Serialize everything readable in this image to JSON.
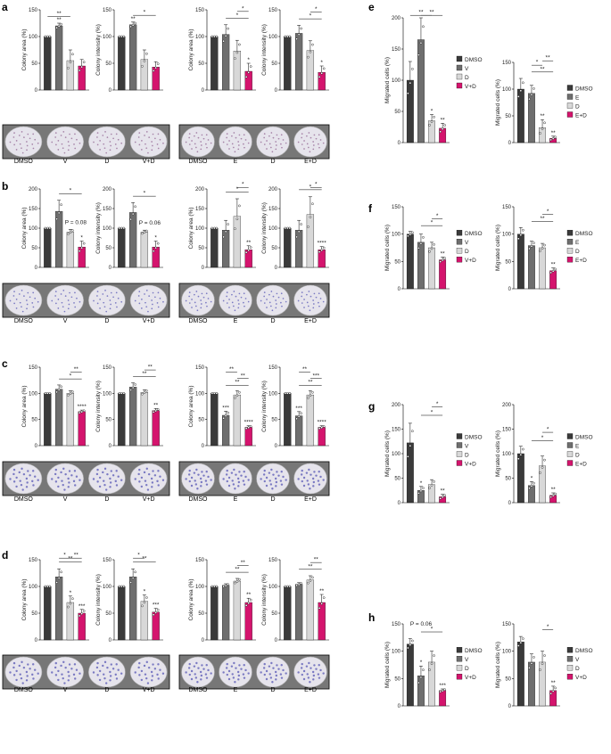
{
  "colors": {
    "DMSO": "#3a3a3a",
    "V": "#6e6e6e",
    "E": "#6e6e6e",
    "D": "#d8d8d8",
    "VD": "#d4146d",
    "ED": "#d4146d"
  },
  "chart_data": [
    {
      "panel": "a",
      "type": "bar",
      "ylabel": "Colony area (%)",
      "ylim": [
        0,
        150
      ],
      "ticks": [
        0,
        50,
        100,
        150
      ],
      "categories": [
        "DMSO",
        "V",
        "D",
        "V+D"
      ],
      "values": [
        100,
        120,
        55,
        45
      ],
      "errors": [
        0,
        5,
        20,
        12
      ],
      "sig": [
        "",
        "**",
        "",
        ""
      ],
      "brackets": [
        [
          "**",
          0,
          2
        ]
      ]
    },
    {
      "panel": "a",
      "type": "bar",
      "ylabel": "Colony intensity (%)",
      "ylim": [
        0,
        150
      ],
      "ticks": [
        0,
        50,
        100,
        150
      ],
      "categories": [
        "DMSO",
        "V",
        "D",
        "V+D"
      ],
      "values": [
        100,
        122,
        57,
        43
      ],
      "errors": [
        0,
        5,
        18,
        10
      ],
      "sig": [
        "",
        "**",
        "",
        ""
      ],
      "brackets": [
        [
          "*",
          1,
          3
        ]
      ]
    },
    {
      "panel": "a",
      "type": "bar",
      "ylabel": "Colony area (%)",
      "ylim": [
        0,
        150
      ],
      "ticks": [
        0,
        50,
        100,
        150
      ],
      "categories": [
        "DMSO",
        "E",
        "D",
        "E+D"
      ],
      "values": [
        100,
        104,
        73,
        35
      ],
      "errors": [
        0,
        18,
        20,
        15
      ],
      "sig": [
        "",
        "",
        "",
        "*"
      ],
      "brackets": [
        [
          "*",
          1,
          3
        ],
        [
          "*",
          2,
          3
        ]
      ]
    },
    {
      "panel": "a",
      "type": "bar",
      "ylabel": "Colony intensity (%)",
      "ylim": [
        0,
        150
      ],
      "ticks": [
        0,
        50,
        100,
        150
      ],
      "categories": [
        "DMSO",
        "E",
        "D",
        "E+D"
      ],
      "values": [
        100,
        106,
        74,
        33
      ],
      "errors": [
        0,
        15,
        18,
        12
      ],
      "sig": [
        "",
        "",
        "",
        "*"
      ],
      "brackets": [
        [
          "*",
          1,
          3
        ],
        [
          "*",
          2,
          3
        ]
      ]
    },
    {
      "panel": "b",
      "type": "bar",
      "ylabel": "Colony area (%)",
      "ylim": [
        0,
        200
      ],
      "ticks": [
        0,
        50,
        100,
        150,
        200
      ],
      "categories": [
        "DMSO",
        "V",
        "D",
        "V+D"
      ],
      "values": [
        100,
        143,
        90,
        52
      ],
      "errors": [
        0,
        28,
        7,
        15
      ],
      "sig": [
        "",
        "",
        "",
        "*"
      ],
      "brackets": [
        [
          "*",
          1,
          3
        ]
      ],
      "pnote": "P = 0.08"
    },
    {
      "panel": "b",
      "type": "bar",
      "ylabel": "Colony intensity (%)",
      "ylim": [
        0,
        200
      ],
      "ticks": [
        0,
        50,
        100,
        150,
        200
      ],
      "categories": [
        "DMSO",
        "V",
        "D",
        "V+D"
      ],
      "values": [
        100,
        140,
        90,
        52
      ],
      "errors": [
        0,
        25,
        5,
        15
      ],
      "sig": [
        "",
        "",
        "",
        "*"
      ],
      "brackets": [
        [
          "*",
          1,
          3
        ]
      ],
      "pnote": "P = 0.06"
    },
    {
      "panel": "b",
      "type": "bar",
      "ylabel": "Colony area (%)",
      "ylim": [
        0,
        200
      ],
      "ticks": [
        0,
        50,
        100,
        150,
        200
      ],
      "categories": [
        "DMSO",
        "E",
        "D",
        "E+D"
      ],
      "values": [
        100,
        95,
        130,
        45
      ],
      "errors": [
        0,
        25,
        45,
        10
      ],
      "sig": [
        "",
        "",
        "",
        "**"
      ],
      "brackets": [
        [
          "*",
          1,
          3
        ],
        [
          "*",
          2,
          3
        ]
      ]
    },
    {
      "panel": "b",
      "type": "bar",
      "ylabel": "Colony intensity (%)",
      "ylim": [
        0,
        200
      ],
      "ticks": [
        0,
        50,
        100,
        150,
        200
      ],
      "categories": [
        "DMSO",
        "E",
        "D",
        "E+D"
      ],
      "values": [
        100,
        95,
        135,
        45
      ],
      "errors": [
        0,
        25,
        45,
        8
      ],
      "sig": [
        "",
        "",
        "",
        "****"
      ],
      "brackets": [
        [
          "*",
          1,
          3
        ],
        [
          "*",
          2,
          3
        ]
      ]
    },
    {
      "panel": "c",
      "type": "bar",
      "ylabel": "Colony area (%)",
      "ylim": [
        0,
        150
      ],
      "ticks": [
        0,
        50,
        100,
        150
      ],
      "categories": [
        "DMSO",
        "V",
        "D",
        "V+D"
      ],
      "values": [
        100,
        108,
        100,
        65
      ],
      "errors": [
        0,
        8,
        5,
        3
      ],
      "sig": [
        "",
        "",
        "",
        "****"
      ],
      "brackets": [
        [
          "*",
          1,
          3
        ],
        [
          "**",
          2,
          3
        ]
      ]
    },
    {
      "panel": "c",
      "type": "bar",
      "ylabel": "Colony intensity (%)",
      "ylim": [
        0,
        150
      ],
      "ticks": [
        0,
        50,
        100,
        150
      ],
      "categories": [
        "DMSO",
        "V",
        "D",
        "V+D"
      ],
      "values": [
        100,
        112,
        102,
        67
      ],
      "errors": [
        0,
        8,
        5,
        4
      ],
      "sig": [
        "",
        "",
        "",
        "**"
      ],
      "brackets": [
        [
          "**",
          1,
          3
        ],
        [
          "**",
          2,
          3
        ]
      ]
    },
    {
      "panel": "c",
      "type": "bar",
      "ylabel": "Colony area (%)",
      "ylim": [
        0,
        150
      ],
      "ticks": [
        0,
        50,
        100,
        150
      ],
      "categories": [
        "DMSO",
        "E",
        "D",
        "E+D"
      ],
      "values": [
        100,
        58,
        97,
        35
      ],
      "errors": [
        0,
        8,
        8,
        3
      ],
      "sig": [
        "",
        "***",
        "",
        "****"
      ],
      "brackets": [
        [
          "**",
          1,
          3
        ],
        [
          "**",
          2,
          3
        ],
        [
          "**",
          1,
          2
        ]
      ]
    },
    {
      "panel": "c",
      "type": "bar",
      "ylabel": "Colony intensity (%)",
      "ylim": [
        0,
        150
      ],
      "ticks": [
        0,
        50,
        100,
        150
      ],
      "categories": [
        "DMSO",
        "E",
        "D",
        "E+D"
      ],
      "values": [
        100,
        57,
        97,
        35
      ],
      "errors": [
        0,
        8,
        8,
        3
      ],
      "sig": [
        "",
        "***",
        "",
        "****"
      ],
      "brackets": [
        [
          "**",
          1,
          3
        ],
        [
          "***",
          2,
          3
        ],
        [
          "**",
          1,
          2
        ]
      ]
    },
    {
      "panel": "d",
      "type": "bar",
      "ylabel": "Colony area (%)",
      "ylim": [
        0,
        150
      ],
      "ticks": [
        0,
        50,
        100,
        150
      ],
      "categories": [
        "DMSO",
        "V",
        "D",
        "V+D"
      ],
      "values": [
        100,
        118,
        70,
        50
      ],
      "errors": [
        0,
        15,
        12,
        7
      ],
      "sig": [
        "",
        "",
        "*",
        "***"
      ],
      "brackets": [
        [
          "**",
          1,
          3
        ],
        [
          "*",
          1,
          2
        ],
        [
          "**",
          2,
          3
        ]
      ]
    },
    {
      "panel": "d",
      "type": "bar",
      "ylabel": "Colony intensity (%)",
      "ylim": [
        0,
        150
      ],
      "ticks": [
        0,
        50,
        100,
        150
      ],
      "categories": [
        "DMSO",
        "V",
        "D",
        "V+D"
      ],
      "values": [
        100,
        118,
        72,
        52
      ],
      "errors": [
        0,
        15,
        12,
        7
      ],
      "sig": [
        "",
        "",
        "*",
        "***"
      ],
      "brackets": [
        [
          "**",
          1,
          3
        ],
        [
          "*",
          1,
          2
        ]
      ]
    },
    {
      "panel": "d",
      "type": "bar",
      "ylabel": "Colony area (%)",
      "ylim": [
        0,
        150
      ],
      "ticks": [
        0,
        50,
        100,
        150
      ],
      "categories": [
        "DMSO",
        "E",
        "D",
        "E+D"
      ],
      "values": [
        100,
        102,
        110,
        70
      ],
      "errors": [
        0,
        3,
        5,
        8
      ],
      "sig": [
        "",
        "",
        "",
        "**"
      ],
      "brackets": [
        [
          "**",
          1,
          3
        ],
        [
          "**",
          2,
          3
        ]
      ]
    },
    {
      "panel": "d",
      "type": "bar",
      "ylabel": "Colony intensity (%)",
      "ylim": [
        0,
        150
      ],
      "ticks": [
        0,
        50,
        100,
        150
      ],
      "categories": [
        "DMSO",
        "E",
        "D",
        "E+D"
      ],
      "values": [
        100,
        104,
        112,
        70
      ],
      "errors": [
        0,
        3,
        8,
        15
      ],
      "sig": [
        "",
        "",
        "",
        "**"
      ],
      "brackets": [
        [
          "**",
          1,
          3
        ],
        [
          "**",
          2,
          3
        ]
      ]
    },
    {
      "panel": "e",
      "type": "bar",
      "ylabel": "Migrated cells (%)",
      "ylim": [
        0,
        200
      ],
      "ticks": [
        0,
        50,
        100,
        150,
        200
      ],
      "categories": [
        "DMSO",
        "V",
        "D",
        "V+D"
      ],
      "values": [
        100,
        165,
        35,
        23
      ],
      "errors": [
        30,
        35,
        10,
        8
      ],
      "sig": [
        "",
        "",
        "*",
        "**"
      ],
      "brackets": [
        [
          "**",
          0,
          2
        ],
        [
          "**",
          1,
          3
        ]
      ],
      "legend": [
        "DMSO",
        "V",
        "D",
        "V+D"
      ]
    },
    {
      "panel": "e",
      "type": "bar",
      "ylabel": "Migrated cells (%)",
      "ylim": [
        0,
        150
      ],
      "ticks": [
        0,
        50,
        100,
        150
      ],
      "categories": [
        "DMSO",
        "E",
        "D",
        "E+D"
      ],
      "values": [
        100,
        92,
        28,
        8
      ],
      "errors": [
        20,
        15,
        15,
        4
      ],
      "sig": [
        "",
        "",
        "**",
        "**"
      ],
      "brackets": [
        [
          "**",
          1,
          3
        ],
        [
          "*",
          1,
          2
        ],
        [
          "**",
          2,
          3
        ]
      ],
      "legend": [
        "DMSO",
        "E",
        "D",
        "E+D"
      ]
    },
    {
      "panel": "f",
      "type": "bar",
      "ylabel": "Migrated cells (%)",
      "ylim": [
        0,
        150
      ],
      "ticks": [
        0,
        50,
        100,
        150
      ],
      "categories": [
        "DMSO",
        "V",
        "D",
        "V+D"
      ],
      "values": [
        100,
        85,
        75,
        53
      ],
      "errors": [
        5,
        15,
        10,
        5
      ],
      "sig": [
        "",
        "",
        "",
        "**"
      ],
      "brackets": [
        [
          "*",
          1,
          3
        ],
        [
          "*",
          2,
          3
        ]
      ],
      "legend": [
        "DMSO",
        "V",
        "D",
        "V+D"
      ]
    },
    {
      "panel": "f",
      "type": "bar",
      "ylabel": "Migrated cells (%)",
      "ylim": [
        0,
        150
      ],
      "ticks": [
        0,
        50,
        100,
        150
      ],
      "categories": [
        "DMSO",
        "E",
        "D",
        "E+D"
      ],
      "values": [
        100,
        79,
        75,
        33
      ],
      "errors": [
        12,
        8,
        8,
        5
      ],
      "sig": [
        "",
        "",
        "",
        "**"
      ],
      "brackets": [
        [
          "**",
          1,
          3
        ],
        [
          "*",
          2,
          3
        ]
      ],
      "legend": [
        "DMSO",
        "E",
        "D",
        "E+D"
      ]
    },
    {
      "panel": "g",
      "type": "bar",
      "ylabel": "Migrated cells (%)",
      "ylim": [
        0,
        200
      ],
      "ticks": [
        0,
        50,
        100,
        150,
        200
      ],
      "categories": [
        "DMSO",
        "V",
        "D",
        "V+D"
      ],
      "values": [
        122,
        25,
        37,
        12
      ],
      "errors": [
        40,
        8,
        10,
        5
      ],
      "sig": [
        "",
        "*",
        "",
        "**"
      ],
      "brackets": [
        [
          "*",
          1,
          3
        ],
        [
          "*",
          2,
          3
        ]
      ],
      "legend": [
        "DMSO",
        "V",
        "D",
        "V+D"
      ]
    },
    {
      "panel": "g",
      "type": "bar",
      "ylabel": "Migrated cells (%)",
      "ylim": [
        0,
        200
      ],
      "ticks": [
        0,
        50,
        100,
        150,
        200
      ],
      "categories": [
        "DMSO",
        "E",
        "D",
        "E+D"
      ],
      "values": [
        100,
        35,
        75,
        15
      ],
      "errors": [
        15,
        8,
        20,
        5
      ],
      "sig": [
        "",
        "*",
        "",
        "**"
      ],
      "brackets": [
        [
          "*",
          1,
          3
        ],
        [
          "*",
          2,
          3
        ]
      ],
      "legend": [
        "DMSO",
        "E",
        "D",
        "E+D"
      ]
    },
    {
      "panel": "h",
      "type": "bar",
      "ylabel": "Migrated cells (%)",
      "ylim": [
        0,
        150
      ],
      "ticks": [
        0,
        50,
        100,
        150
      ],
      "categories": [
        "DMSO",
        "V",
        "D",
        "V+D"
      ],
      "values": [
        113,
        55,
        80,
        28
      ],
      "errors": [
        10,
        18,
        20,
        3
      ],
      "sig": [
        "",
        "*",
        "",
        "***"
      ],
      "brackets": [
        [
          "*",
          1,
          3
        ]
      ],
      "pnote": "P = 0.06",
      "legend": [
        "DMSO",
        "V",
        "D",
        "V+D"
      ]
    },
    {
      "panel": "h",
      "type": "bar",
      "ylabel": "Migrated cells (%)",
      "ylim": [
        0,
        150
      ],
      "ticks": [
        0,
        50,
        100,
        150
      ],
      "categories": [
        "DMSO",
        "V",
        "D",
        "V+D"
      ],
      "values": [
        117,
        80,
        80,
        28
      ],
      "errors": [
        10,
        15,
        20,
        8
      ],
      "sig": [
        "",
        "",
        "",
        "**"
      ],
      "brackets": [
        [
          "*",
          2,
          3
        ]
      ],
      "legend": [
        "DMSO",
        "V",
        "D",
        "V+D"
      ]
    }
  ],
  "plate_labels": {
    "left": [
      "DMSO",
      "V",
      "D",
      "V+D"
    ],
    "right": [
      "DMSO",
      "E",
      "D",
      "E+D"
    ]
  },
  "panel_letters": [
    "a",
    "b",
    "c",
    "d",
    "e",
    "f",
    "g",
    "h"
  ]
}
